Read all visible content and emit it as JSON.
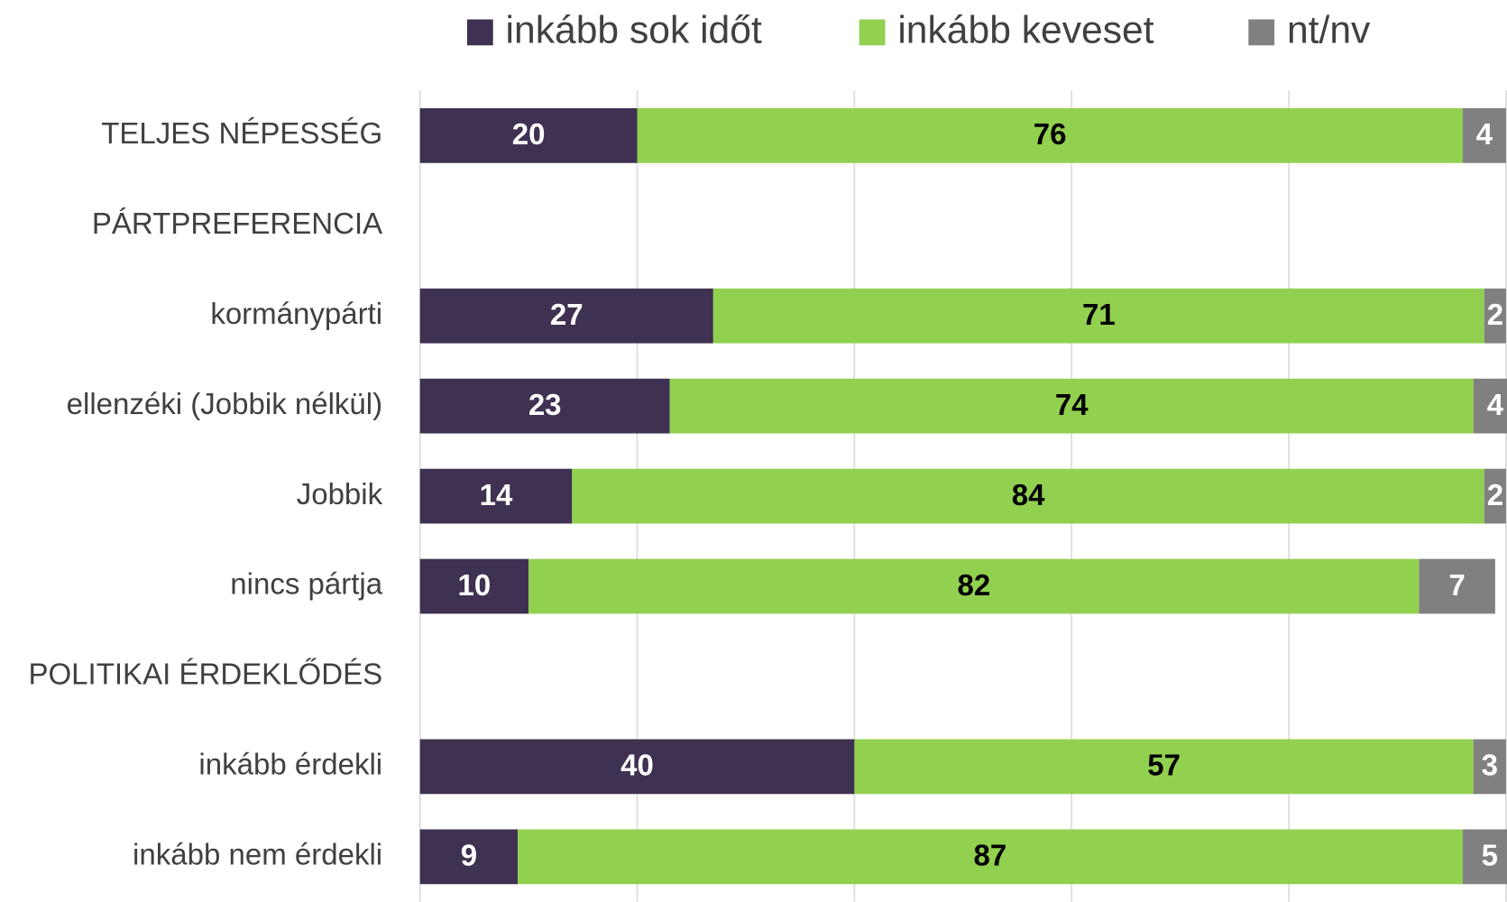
{
  "chart_data": {
    "type": "stacked-barh",
    "categories": [
      "TELJES NÉPESSÉG",
      "PÁRTPREFERENCIA",
      "kormánypárti",
      "ellenzéki (Jobbik nélkül)",
      "Jobbik",
      "nincs pártja",
      "POLITIKAI ÉRDEKLŐDÉS",
      "inkább érdekli",
      "inkább nem érdekli"
    ],
    "series": [
      {
        "name": "inkább sok időt",
        "color": "#3f3151",
        "label_color": "#ffffff",
        "values": [
          20,
          null,
          27,
          23,
          14,
          10,
          null,
          40,
          9
        ]
      },
      {
        "name": "inkább keveset",
        "color": "#92d050",
        "label_color": "#000000",
        "values": [
          76,
          null,
          71,
          74,
          84,
          82,
          null,
          57,
          87
        ]
      },
      {
        "name": "nt/nv",
        "color": "#808080",
        "label_color": "#ffffff",
        "values": [
          4,
          null,
          2,
          4,
          2,
          7,
          null,
          3,
          5
        ]
      }
    ],
    "xlim": [
      0,
      100
    ],
    "xticks": [
      0,
      20,
      40,
      60,
      80,
      100
    ],
    "grid": true,
    "legend": "top"
  }
}
